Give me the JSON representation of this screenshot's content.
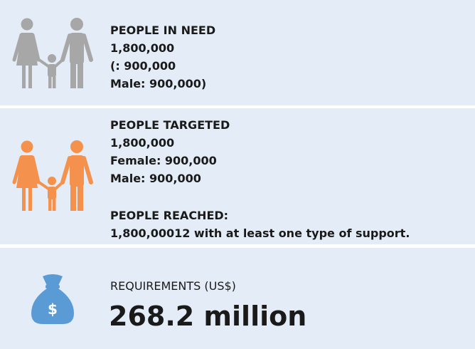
{
  "panels": [
    {
      "lines": [
        "PEOPLE IN NEED",
        "1,800,000",
        "(: 900,000",
        "Male: 900,000)"
      ]
    },
    {
      "lines": [
        "PEOPLE TARGETED",
        "1,800,000",
        "Female: 900,000",
        "Male: 900,000"
      ],
      "extra_lines": [
        "PEOPLE REACHED:",
        "1,800,00012 with at least one type of support."
      ]
    },
    {
      "label": "REQUIREMENTS (US$)",
      "amount": "268.2 million",
      "icon_symbol": "$"
    }
  ]
}
